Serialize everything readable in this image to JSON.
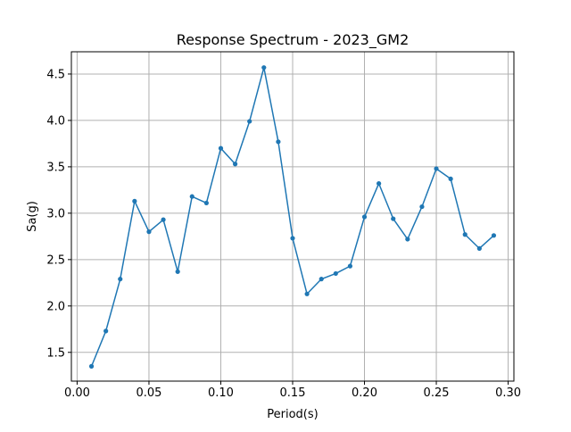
{
  "chart_data": {
    "type": "line",
    "title": "Response Spectrum - 2023_GM2",
    "xlabel": "Period(s)",
    "ylabel": "Sa(g)",
    "xlim": [
      -0.004,
      0.304
    ],
    "ylim": [
      1.19,
      4.74
    ],
    "grid": true,
    "series_color": "#1f77b4",
    "x_ticks": [
      0.0,
      0.05,
      0.1,
      0.15,
      0.2,
      0.25,
      0.3
    ],
    "x_tick_labels": [
      "0.00",
      "0.05",
      "0.10",
      "0.15",
      "0.20",
      "0.25",
      "0.30"
    ],
    "y_ticks": [
      1.5,
      2.0,
      2.5,
      3.0,
      3.5,
      4.0,
      4.5
    ],
    "y_tick_labels": [
      "1.5",
      "2.0",
      "2.5",
      "3.0",
      "3.5",
      "4.0",
      "4.5"
    ],
    "series": [
      {
        "x": [
          0.01,
          0.02,
          0.03,
          0.04,
          0.05,
          0.06,
          0.07,
          0.08,
          0.09,
          0.1,
          0.11,
          0.12,
          0.13,
          0.14,
          0.15,
          0.16,
          0.17,
          0.18,
          0.19,
          0.2,
          0.21,
          0.22,
          0.23,
          0.24,
          0.25,
          0.26,
          0.27,
          0.28,
          0.29
        ],
        "values": [
          1.35,
          1.73,
          2.29,
          3.13,
          2.8,
          2.93,
          2.37,
          3.18,
          3.11,
          3.7,
          3.53,
          3.99,
          4.57,
          3.77,
          2.73,
          2.13,
          2.29,
          2.35,
          2.43,
          2.96,
          3.32,
          2.94,
          2.72,
          3.07,
          3.48,
          3.37,
          2.77,
          2.62,
          2.76
        ]
      }
    ]
  }
}
